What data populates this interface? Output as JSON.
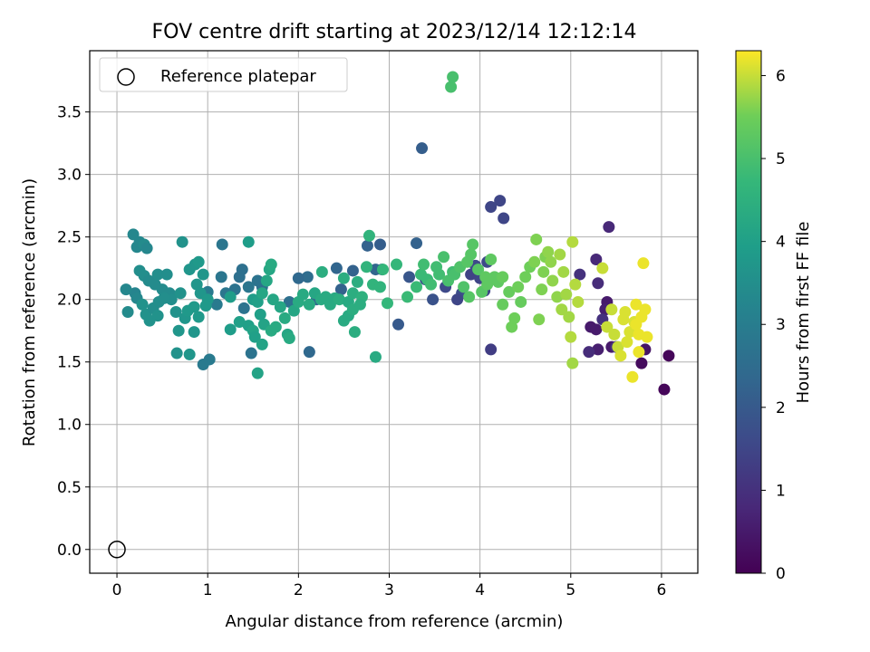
{
  "chart_data": {
    "type": "scatter",
    "title": "FOV centre drift starting at 2023/12/14 12:12:14",
    "xlabel": "Angular distance from reference (arcmin)",
    "ylabel": "Rotation from reference (arcmin)",
    "xlim": [
      -0.3,
      6.4
    ],
    "ylim": [
      -0.19,
      3.99
    ],
    "xticks": [
      0,
      1,
      2,
      3,
      4,
      5,
      6
    ],
    "xtick_labels": [
      "0",
      "1",
      "2",
      "3",
      "4",
      "5",
      "6"
    ],
    "yticks": [
      0.0,
      0.5,
      1.0,
      1.5,
      2.0,
      2.5,
      3.0,
      3.5
    ],
    "ytick_labels": [
      "0.0",
      "0.5",
      "1.0",
      "1.5",
      "2.0",
      "2.5",
      "3.0",
      "3.5"
    ],
    "grid": true,
    "legend": {
      "placement": "top-left",
      "entries": [
        "Reference platepar"
      ]
    },
    "reference_point": {
      "x": 0,
      "y": 0
    },
    "colorbar": {
      "label": "Hours from first FF file",
      "colormap": "viridis",
      "range": [
        0,
        6.3
      ],
      "ticks": [
        0,
        1,
        2,
        3,
        4,
        5,
        6
      ],
      "tick_labels": [
        "0",
        "1",
        "2",
        "3",
        "4",
        "5",
        "6"
      ]
    },
    "points": [
      [
        6.03,
        1.28,
        0.1
      ],
      [
        6.08,
        1.55,
        0.1
      ],
      [
        5.78,
        1.49,
        0.2
      ],
      [
        5.82,
        1.6,
        0.4
      ],
      [
        5.4,
        1.98,
        0.5
      ],
      [
        5.3,
        1.6,
        0.6
      ],
      [
        5.38,
        1.92,
        0.6
      ],
      [
        5.22,
        1.78,
        0.5
      ],
      [
        5.28,
        1.76,
        0.5
      ],
      [
        5.45,
        1.62,
        0.5
      ],
      [
        5.42,
        2.58,
        0.8
      ],
      [
        5.28,
        2.32,
        0.8
      ],
      [
        5.3,
        2.13,
        0.9
      ],
      [
        5.2,
        1.58,
        0.9
      ],
      [
        5.35,
        1.84,
        1.0
      ],
      [
        5.5,
        1.62,
        1.0
      ],
      [
        5.1,
        2.2,
        1.0
      ],
      [
        4.12,
        1.6,
        1.3
      ],
      [
        4.22,
        2.79,
        1.5
      ],
      [
        4.12,
        2.74,
        1.5
      ],
      [
        4.26,
        2.65,
        1.5
      ],
      [
        4.05,
        2.07,
        1.5
      ],
      [
        4.0,
        2.17,
        1.5
      ],
      [
        3.9,
        2.2,
        1.4
      ],
      [
        3.8,
        2.05,
        1.7
      ],
      [
        3.75,
        2.0,
        1.5
      ],
      [
        3.95,
        2.27,
        1.6
      ],
      [
        4.08,
        2.3,
        1.6
      ],
      [
        3.48,
        2.0,
        1.8
      ],
      [
        3.62,
        2.1,
        1.6
      ],
      [
        3.1,
        1.8,
        2.0
      ],
      [
        3.36,
        3.21,
        2.1
      ],
      [
        3.3,
        2.45,
        2.2
      ],
      [
        3.22,
        2.18,
        1.9
      ],
      [
        3.4,
        2.16,
        1.8
      ],
      [
        2.92,
        2.24,
        2.1
      ],
      [
        2.9,
        2.44,
        2.1
      ],
      [
        2.76,
        2.43,
        2.2
      ],
      [
        2.85,
        2.24,
        2.3
      ],
      [
        2.6,
        2.23,
        2.2
      ],
      [
        2.47,
        2.08,
        2.2
      ],
      [
        2.42,
        2.25,
        2.3
      ],
      [
        2.2,
        2.0,
        2.4
      ],
      [
        2.1,
        2.18,
        2.5
      ],
      [
        2.12,
        1.58,
        2.4
      ],
      [
        2.0,
        2.17,
        2.4
      ],
      [
        1.9,
        1.98,
        2.6
      ],
      [
        1.6,
        2.1,
        2.6
      ],
      [
        1.55,
        2.15,
        2.7
      ],
      [
        1.48,
        1.57,
        2.7
      ],
      [
        1.4,
        1.93,
        2.7
      ],
      [
        1.38,
        2.24,
        2.6
      ],
      [
        1.35,
        2.18,
        2.6
      ],
      [
        1.45,
        2.1,
        2.8
      ],
      [
        1.3,
        2.08,
        2.7
      ],
      [
        1.2,
        2.05,
        2.8
      ],
      [
        1.15,
        2.18,
        2.8
      ],
      [
        1.16,
        2.44,
        2.8
      ],
      [
        1.02,
        1.52,
        2.9
      ],
      [
        0.95,
        1.48,
        2.9
      ],
      [
        1.1,
        1.96,
        2.9
      ],
      [
        1.0,
        2.06,
        2.9
      ],
      [
        0.2,
        2.05,
        3.2
      ],
      [
        0.22,
        2.42,
        3.3
      ],
      [
        0.18,
        2.52,
        3.3
      ],
      [
        0.25,
        2.46,
        3.3
      ],
      [
        0.3,
        2.44,
        3.4
      ],
      [
        0.33,
        2.41,
        3.3
      ],
      [
        0.12,
        1.9,
        3.4
      ],
      [
        0.22,
        2.01,
        3.3
      ],
      [
        0.25,
        2.23,
        3.5
      ],
      [
        0.3,
        2.19,
        3.5
      ],
      [
        0.35,
        2.15,
        3.4
      ],
      [
        0.42,
        2.12,
        3.4
      ],
      [
        0.45,
        2.2,
        3.5
      ],
      [
        0.5,
        2.08,
        3.4
      ],
      [
        0.55,
        2.2,
        3.5
      ],
      [
        0.58,
        2.05,
        3.4
      ],
      [
        0.32,
        1.88,
        3.6
      ],
      [
        0.4,
        1.93,
        3.5
      ],
      [
        0.46,
        1.98,
        3.5
      ],
      [
        0.6,
        2.0,
        3.5
      ],
      [
        0.65,
        1.9,
        3.6
      ],
      [
        0.28,
        1.96,
        3.6
      ],
      [
        0.36,
        1.83,
        3.6
      ],
      [
        0.45,
        1.87,
        3.6
      ],
      [
        0.52,
        2.01,
        3.5
      ],
      [
        0.7,
        2.05,
        3.6
      ],
      [
        0.66,
        1.57,
        3.6
      ],
      [
        0.72,
        2.46,
        3.6
      ],
      [
        0.8,
        1.56,
        3.7
      ],
      [
        0.85,
        1.74,
        3.7
      ],
      [
        0.75,
        1.85,
        3.7
      ],
      [
        0.8,
        2.24,
        3.7
      ],
      [
        0.86,
        2.28,
        3.7
      ],
      [
        0.9,
        2.3,
        3.8
      ],
      [
        0.92,
        2.05,
        3.7
      ],
      [
        0.88,
        2.12,
        3.7
      ],
      [
        0.95,
        2.2,
        3.7
      ],
      [
        0.78,
        1.91,
        3.8
      ],
      [
        0.85,
        1.94,
        3.8
      ],
      [
        0.68,
        1.75,
        3.7
      ],
      [
        1.0,
        2.0,
        3.8
      ],
      [
        0.9,
        1.86,
        3.8
      ],
      [
        0.98,
        1.95,
        3.8
      ],
      [
        0.1,
        2.08,
        3.3
      ],
      [
        1.25,
        1.76,
        3.9
      ],
      [
        1.25,
        2.02,
        3.9
      ],
      [
        1.5,
        2.0,
        3.9
      ],
      [
        1.45,
        2.46,
        3.9
      ],
      [
        1.35,
        1.82,
        4.0
      ],
      [
        1.45,
        1.79,
        4.0
      ],
      [
        1.5,
        1.75,
        4.1
      ],
      [
        1.52,
        1.7,
        4.0
      ],
      [
        1.55,
        1.41,
        4.1
      ],
      [
        1.6,
        1.64,
        4.1
      ],
      [
        1.62,
        1.8,
        4.1
      ],
      [
        1.58,
        1.88,
        4.0
      ],
      [
        1.55,
        1.98,
        4.0
      ],
      [
        1.6,
        2.05,
        4.2
      ],
      [
        1.65,
        2.15,
        4.2
      ],
      [
        1.68,
        2.24,
        4.2
      ],
      [
        1.7,
        2.28,
        4.3
      ],
      [
        1.72,
        2.0,
        4.2
      ],
      [
        1.7,
        1.75,
        4.3
      ],
      [
        1.75,
        1.78,
        4.3
      ],
      [
        1.8,
        1.94,
        4.2
      ],
      [
        1.85,
        1.85,
        4.3
      ],
      [
        1.88,
        1.72,
        4.2
      ],
      [
        1.9,
        1.69,
        4.3
      ],
      [
        1.95,
        1.91,
        4.2
      ],
      [
        2.0,
        1.98,
        4.3
      ],
      [
        2.05,
        2.04,
        4.3
      ],
      [
        2.12,
        1.96,
        4.3
      ],
      [
        2.18,
        2.05,
        4.2
      ],
      [
        2.25,
        2.0,
        4.3
      ],
      [
        2.26,
        2.22,
        4.4
      ],
      [
        2.3,
        2.02,
        4.3
      ],
      [
        2.35,
        1.96,
        4.3
      ],
      [
        2.4,
        2.01,
        4.3
      ],
      [
        2.45,
        2.0,
        4.4
      ],
      [
        2.5,
        2.17,
        4.4
      ],
      [
        2.55,
        1.98,
        4.3
      ],
      [
        2.6,
        2.05,
        4.4
      ],
      [
        2.62,
        1.74,
        4.4
      ],
      [
        2.5,
        1.83,
        4.3
      ],
      [
        2.55,
        1.87,
        4.3
      ],
      [
        2.6,
        1.92,
        4.4
      ],
      [
        2.65,
        2.14,
        4.4
      ],
      [
        2.7,
        2.02,
        4.5
      ],
      [
        2.68,
        1.96,
        4.4
      ],
      [
        2.75,
        2.26,
        4.6
      ],
      [
        2.78,
        2.51,
        4.6
      ],
      [
        2.82,
        2.12,
        4.6
      ],
      [
        2.9,
        2.1,
        4.6
      ],
      [
        2.85,
        1.54,
        4.3
      ],
      [
        2.93,
        2.24,
        4.7
      ],
      [
        2.98,
        1.97,
        4.7
      ],
      [
        3.08,
        2.28,
        4.7
      ],
      [
        3.2,
        2.02,
        4.8
      ],
      [
        3.3,
        2.1,
        4.8
      ],
      [
        3.35,
        2.2,
        4.8
      ],
      [
        3.38,
        2.28,
        4.9
      ],
      [
        3.42,
        2.16,
        4.8
      ],
      [
        3.46,
        2.12,
        4.9
      ],
      [
        3.52,
        2.26,
        4.9
      ],
      [
        3.55,
        2.2,
        4.9
      ],
      [
        3.6,
        2.34,
        5.0
      ],
      [
        3.65,
        2.15,
        5.0
      ],
      [
        3.7,
        2.22,
        4.9
      ],
      [
        3.68,
        3.7,
        5.0
      ],
      [
        3.7,
        3.78,
        5.0
      ],
      [
        3.72,
        2.2,
        5.0
      ],
      [
        3.78,
        2.26,
        5.1
      ],
      [
        3.82,
        2.1,
        5.1
      ],
      [
        3.86,
        2.3,
        5.2
      ],
      [
        3.88,
        2.02,
        5.2
      ],
      [
        3.9,
        2.36,
        5.2
      ],
      [
        3.92,
        2.44,
        5.2
      ],
      [
        3.98,
        2.24,
        5.2
      ],
      [
        4.02,
        2.06,
        5.2
      ],
      [
        4.06,
        2.18,
        5.3
      ],
      [
        4.08,
        2.12,
        5.3
      ],
      [
        4.12,
        2.32,
        5.3
      ],
      [
        4.16,
        2.18,
        5.3
      ],
      [
        4.2,
        2.14,
        5.3
      ],
      [
        4.25,
        2.18,
        5.4
      ],
      [
        4.25,
        1.96,
        5.4
      ],
      [
        4.32,
        2.06,
        5.4
      ],
      [
        4.35,
        1.78,
        5.5
      ],
      [
        4.38,
        1.85,
        5.5
      ],
      [
        4.42,
        2.1,
        5.5
      ],
      [
        4.45,
        1.98,
        5.4
      ],
      [
        4.5,
        2.18,
        5.5
      ],
      [
        4.55,
        2.26,
        5.5
      ],
      [
        4.6,
        2.3,
        5.6
      ],
      [
        4.62,
        2.48,
        5.6
      ],
      [
        4.65,
        1.84,
        5.6
      ],
      [
        4.68,
        2.08,
        5.6
      ],
      [
        4.7,
        2.22,
        5.6
      ],
      [
        4.72,
        2.34,
        5.6
      ],
      [
        4.75,
        2.38,
        5.7
      ],
      [
        4.78,
        2.3,
        5.7
      ],
      [
        4.8,
        2.15,
        5.7
      ],
      [
        4.85,
        2.02,
        5.7
      ],
      [
        4.88,
        2.36,
        5.8
      ],
      [
        4.9,
        1.92,
        5.8
      ],
      [
        4.92,
        2.22,
        5.8
      ],
      [
        4.95,
        2.04,
        5.8
      ],
      [
        4.98,
        1.86,
        5.8
      ],
      [
        5.0,
        1.7,
        5.9
      ],
      [
        5.02,
        2.46,
        5.9
      ],
      [
        5.05,
        2.12,
        5.9
      ],
      [
        5.08,
        1.98,
        5.9
      ],
      [
        5.02,
        1.49,
        5.8
      ],
      [
        5.35,
        2.25,
        6.0
      ],
      [
        5.4,
        1.78,
        6.0
      ],
      [
        5.45,
        1.92,
        6.0
      ],
      [
        5.48,
        1.72,
        6.0
      ],
      [
        5.52,
        1.62,
        6.0
      ],
      [
        5.55,
        1.55,
        6.1
      ],
      [
        5.58,
        1.84,
        6.1
      ],
      [
        5.6,
        1.9,
        6.1
      ],
      [
        5.62,
        1.66,
        6.1
      ],
      [
        5.65,
        1.74,
        6.1
      ],
      [
        5.68,
        1.38,
        6.2
      ],
      [
        5.7,
        1.82,
        6.1
      ],
      [
        5.72,
        1.96,
        6.2
      ],
      [
        5.75,
        1.58,
        6.2
      ],
      [
        5.78,
        1.86,
        6.2
      ],
      [
        5.8,
        2.29,
        6.2
      ],
      [
        5.82,
        1.92,
        6.2
      ],
      [
        5.84,
        1.7,
        6.2
      ],
      [
        5.75,
        1.72,
        6.2
      ],
      [
        5.72,
        1.8,
        6.2
      ]
    ]
  }
}
